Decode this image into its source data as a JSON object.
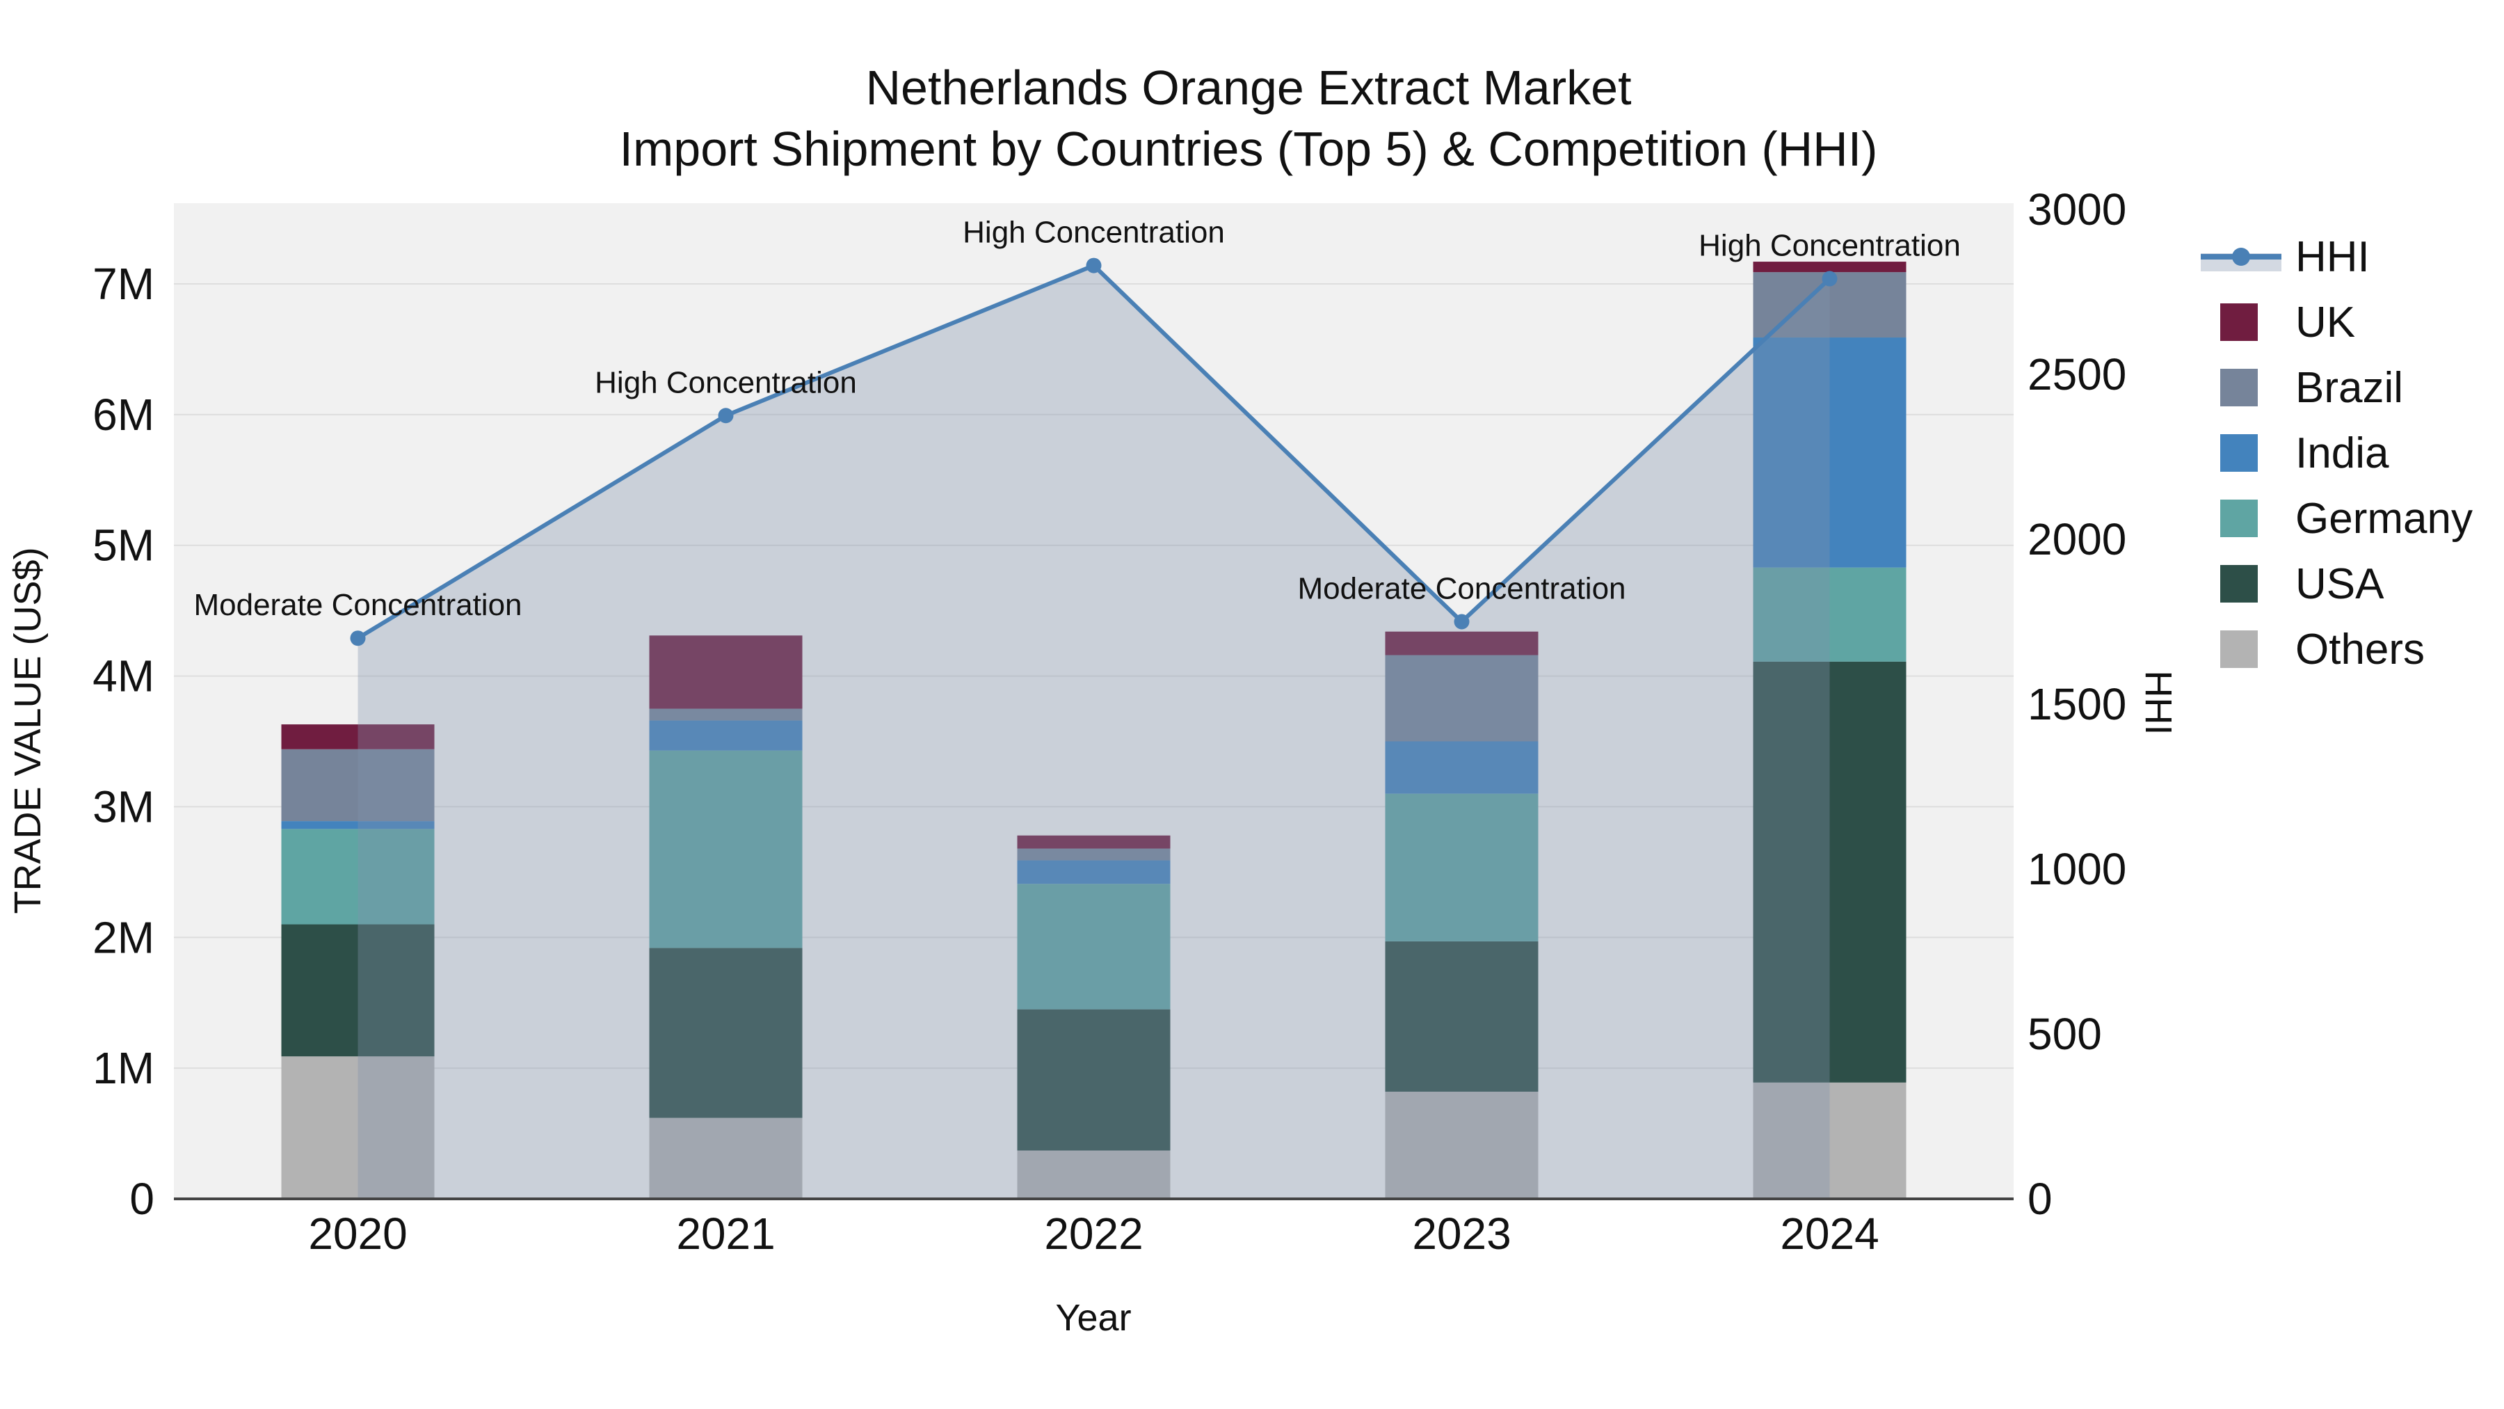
{
  "title": {
    "line1": "Netherlands Orange Extract Market",
    "line2": "Import Shipment by Countries (Top 5) & Competition (HHI)"
  },
  "axes": {
    "x": {
      "title": "Year",
      "categories": [
        "2020",
        "2021",
        "2022",
        "2023",
        "2024"
      ]
    },
    "y_left": {
      "title": "TRADE VALUE (US$)",
      "tick_labels": [
        "0",
        "1M",
        "2M",
        "3M",
        "4M",
        "5M",
        "6M",
        "7M"
      ],
      "tick_values_musd": [
        0,
        1,
        2,
        3,
        4,
        5,
        6,
        7
      ],
      "range_musd": [
        0,
        7.63
      ]
    },
    "y_right": {
      "title": "HHI",
      "tick_labels": [
        "0",
        "500",
        "1000",
        "1500",
        "2000",
        "2500",
        "3000"
      ],
      "tick_values": [
        0,
        500,
        1000,
        1500,
        2000,
        2500,
        3000
      ],
      "range": [
        0,
        3000
      ]
    }
  },
  "legend": {
    "items": [
      {
        "label": "HHI",
        "type": "line",
        "color": "#4a80b5",
        "band_color": "#d3d9e2"
      },
      {
        "label": "UK",
        "type": "square",
        "color": "#701d40"
      },
      {
        "label": "Brazil",
        "type": "square",
        "color": "#76849a"
      },
      {
        "label": "India",
        "type": "square",
        "color": "#4383bd"
      },
      {
        "label": "Germany",
        "type": "square",
        "color": "#5fa5a3"
      },
      {
        "label": "USA",
        "type": "square",
        "color": "#2d4f48"
      },
      {
        "label": "Others",
        "type": "square",
        "color": "#b3b3b3"
      }
    ]
  },
  "chart_data": {
    "type": "combo",
    "subtype": "stacked-bar + line-with-area",
    "categories": [
      "2020",
      "2021",
      "2022",
      "2023",
      "2024"
    ],
    "bar_value_unit": "million US$",
    "bar_series": [
      {
        "name": "UK",
        "color": "#701d40",
        "values": [
          0.19,
          0.56,
          0.1,
          0.18,
          0.08
        ]
      },
      {
        "name": "Brazil",
        "color": "#76849a",
        "values": [
          0.55,
          0.09,
          0.09,
          0.66,
          0.5
        ]
      },
      {
        "name": "India",
        "color": "#4383bd",
        "values": [
          0.06,
          0.23,
          0.18,
          0.4,
          1.76
        ]
      },
      {
        "name": "Germany",
        "color": "#5fa5a3",
        "values": [
          0.73,
          1.51,
          0.96,
          1.13,
          0.72
        ]
      },
      {
        "name": "USA",
        "color": "#2d4f48",
        "values": [
          1.01,
          1.3,
          1.08,
          1.15,
          3.22
        ]
      },
      {
        "name": "Others",
        "color": "#b3b3b3",
        "values": [
          1.09,
          0.62,
          0.37,
          0.82,
          0.89
        ]
      }
    ],
    "stack_order_bottom_to_top": [
      "Others",
      "USA",
      "Germany",
      "India",
      "Brazil",
      "UK"
    ],
    "bar_totals_musd": [
      3.63,
      4.31,
      2.78,
      4.34,
      7.17
    ],
    "line_series": {
      "name": "HHI",
      "color": "#4a80b5",
      "area_fill": "rgba(129,147,173,0.35)",
      "values": [
        1700,
        2375,
        2830,
        1750,
        2790
      ]
    },
    "annotations": [
      {
        "category": "2020",
        "text": "Moderate Concentration"
      },
      {
        "category": "2021",
        "text": "High Concentration"
      },
      {
        "category": "2022",
        "text": "High Concentration"
      },
      {
        "category": "2023",
        "text": "Moderate Concentration"
      },
      {
        "category": "2024",
        "text": "High Concentration"
      }
    ],
    "ylim_left_musd": [
      0,
      7.63
    ],
    "ylim_right_hhi": [
      0,
      3000
    ],
    "grid": "horizontal gridlines at 1M steps",
    "legend_position": "right",
    "colors": {
      "figure_bg": "#ffffff",
      "plot_bg": "#f1f1f1",
      "gridline": "#dedede",
      "axis_line": "#444444",
      "text": "#111111"
    }
  }
}
